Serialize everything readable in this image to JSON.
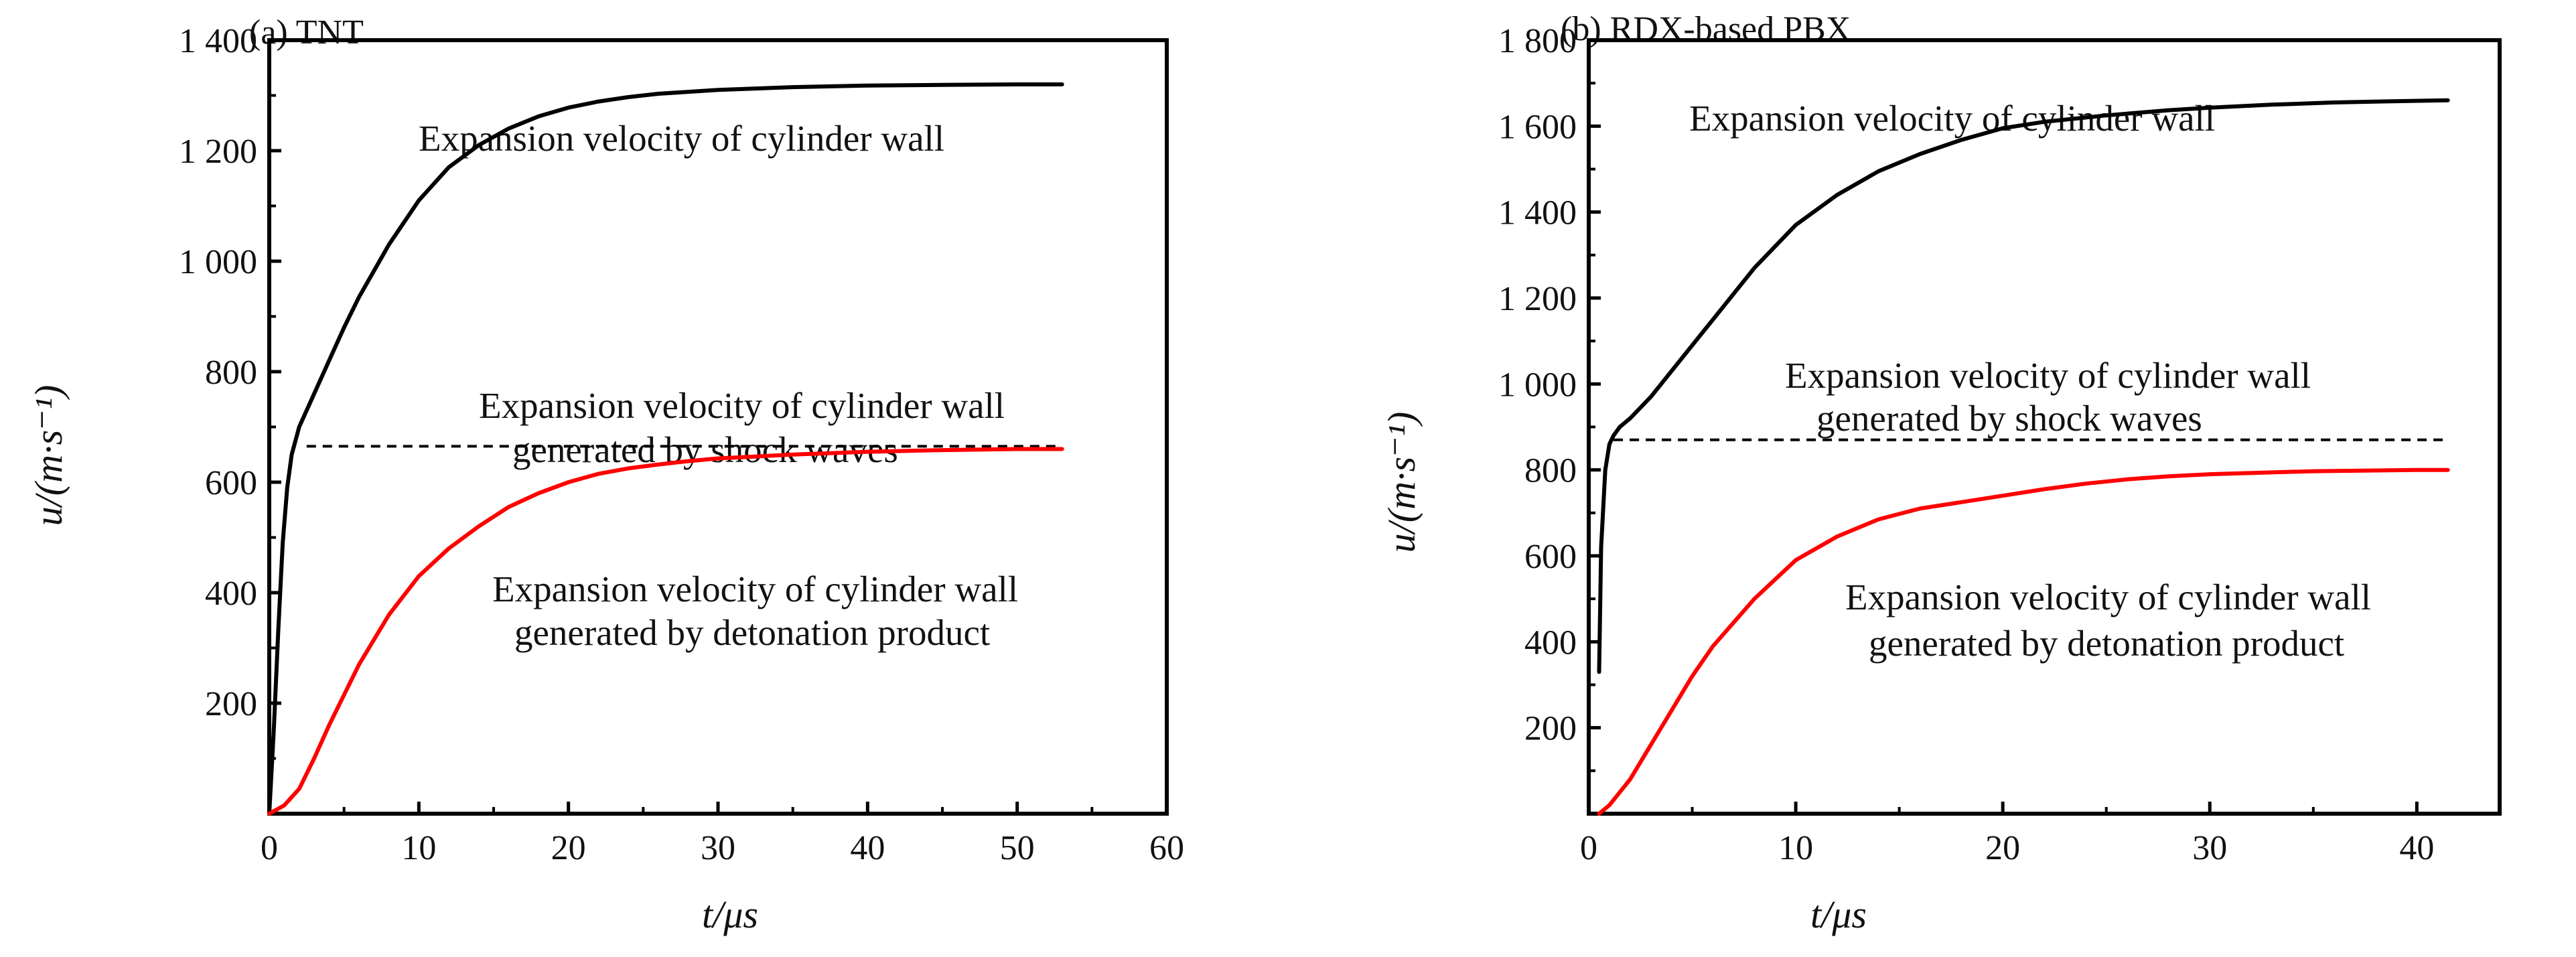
{
  "chart_data": [
    {
      "type": "line",
      "title": "(a) TNT",
      "xlabel": "t/μs",
      "ylabel": "u/(m·s⁻¹)",
      "xlim": [
        0,
        60
      ],
      "ylim": [
        0,
        1400
      ],
      "x_ticks": [
        0,
        10,
        20,
        30,
        40,
        50,
        60
      ],
      "x_tick_labels": [
        "0",
        "10",
        "20",
        "30",
        "40",
        "50",
        "60"
      ],
      "y_ticks": [
        200,
        400,
        600,
        800,
        1000,
        1200,
        1400
      ],
      "y_tick_labels": [
        "200",
        "400",
        "600",
        "800",
        "1 000",
        "1 200",
        "1 400"
      ],
      "grid": false,
      "series": [
        {
          "color": "#000000",
          "dash": "solid",
          "x": [
            0,
            0.3,
            0.6,
            0.9,
            1.2,
            1.5,
            2,
            3,
            4,
            5,
            6,
            8,
            10,
            12,
            14,
            16,
            18,
            20,
            22,
            24,
            26,
            30,
            35,
            40,
            45,
            50,
            53
          ],
          "y": [
            0,
            150,
            330,
            490,
            590,
            650,
            700,
            760,
            820,
            880,
            935,
            1030,
            1110,
            1170,
            1210,
            1240,
            1262,
            1278,
            1289,
            1297,
            1303,
            1310,
            1315,
            1318,
            1319,
            1320,
            1320
          ]
        },
        {
          "color": "#000000",
          "dash": "dashed",
          "x": [
            2.5,
            53
          ],
          "y": [
            665,
            665
          ]
        },
        {
          "color": "#ff0000",
          "dash": "solid",
          "x": [
            0,
            1,
            2,
            3,
            4,
            5,
            6,
            8,
            10,
            12,
            14,
            16,
            18,
            20,
            22,
            24,
            26,
            28,
            30,
            35,
            40,
            45,
            50,
            53
          ],
          "y": [
            0,
            15,
            45,
            100,
            160,
            215,
            270,
            360,
            430,
            480,
            520,
            555,
            580,
            600,
            615,
            625,
            632,
            638,
            643,
            650,
            655,
            658,
            660,
            660
          ]
        }
      ],
      "annotations": [
        {
          "text": "Expansion velocity of cylinder wall"
        },
        {
          "text": "Expansion velocity of cylinder wall"
        },
        {
          "text": "generated by shock waves"
        },
        {
          "text": "Expansion velocity of cylinder wall"
        },
        {
          "text": "generated by detonation product"
        }
      ]
    },
    {
      "type": "line",
      "title": "(b) RDX-based PBX",
      "xlabel": "t/μs",
      "ylabel": "u/(m·s⁻¹)",
      "xlim": [
        0,
        44
      ],
      "ylim": [
        0,
        1800
      ],
      "x_ticks": [
        0,
        10,
        20,
        30,
        40
      ],
      "x_tick_labels": [
        "0",
        "10",
        "20",
        "30",
        "40"
      ],
      "y_ticks": [
        200,
        400,
        600,
        800,
        1000,
        1200,
        1400,
        1600,
        1800
      ],
      "y_tick_labels": [
        "200",
        "400",
        "600",
        "800",
        "1 000",
        "1 200",
        "1 400",
        "1 600",
        "1 800"
      ],
      "grid": false,
      "series": [
        {
          "color": "#000000",
          "dash": "solid",
          "x": [
            0.5,
            0.6,
            0.8,
            1.0,
            1.2,
            1.5,
            2,
            3,
            4,
            5,
            6,
            8,
            10,
            12,
            14,
            16,
            18,
            20,
            22,
            25,
            28,
            30,
            33,
            36,
            39,
            41.5
          ],
          "y": [
            330,
            620,
            800,
            860,
            880,
            900,
            920,
            970,
            1030,
            1090,
            1150,
            1270,
            1370,
            1440,
            1495,
            1535,
            1568,
            1595,
            1610,
            1625,
            1637,
            1643,
            1650,
            1655,
            1658,
            1660
          ]
        },
        {
          "color": "#000000",
          "dash": "dashed",
          "x": [
            1.2,
            41.5
          ],
          "y": [
            870,
            870
          ]
        },
        {
          "color": "#ff0000",
          "dash": "solid",
          "x": [
            0.5,
            1,
            2,
            3,
            4,
            5,
            6,
            8,
            10,
            12,
            14,
            16,
            18,
            20,
            22,
            24,
            26,
            28,
            30,
            35,
            40,
            41.5
          ],
          "y": [
            0,
            20,
            80,
            160,
            240,
            320,
            390,
            500,
            590,
            645,
            685,
            710,
            725,
            740,
            755,
            768,
            778,
            785,
            790,
            797,
            800,
            800
          ]
        }
      ],
      "annotations": [
        {
          "text": "Expansion velocity of cylinder wall"
        },
        {
          "text": "Expansion velocity of cylinder wall"
        },
        {
          "text": "generated by shock waves"
        },
        {
          "text": "Expansion velocity of cylinder wall"
        },
        {
          "text": "generated by detonation product"
        }
      ]
    }
  ]
}
